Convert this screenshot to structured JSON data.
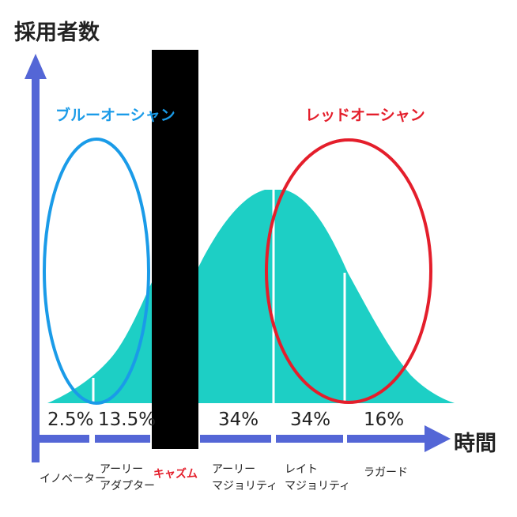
{
  "axes": {
    "y_label": "採用者数",
    "x_label": "時間"
  },
  "oceans": {
    "blue": {
      "label": "ブルーオーシャン",
      "color": "#1a9be8"
    },
    "red": {
      "label": "レッドオーシャン",
      "color": "#e41e2b"
    }
  },
  "chasm": {
    "label": "キャズム",
    "label_color": "#e41e2b",
    "bar_color": "#000000"
  },
  "colors": {
    "curve_fill": "#1dcfc5",
    "axis": "#5466d6"
  },
  "segments": [
    {
      "pct": "2.5%",
      "name_lines": [
        "イノベーター"
      ]
    },
    {
      "pct": "13.5%",
      "name_lines": [
        "アーリー",
        "アダプター"
      ]
    },
    {
      "pct": "34%",
      "name_lines": [
        "アーリー",
        "マジョリティ"
      ]
    },
    {
      "pct": "34%",
      "name_lines": [
        "レイト",
        "マジョリティ"
      ]
    },
    {
      "pct": "16%",
      "name_lines": [
        "ラガード"
      ]
    }
  ]
}
